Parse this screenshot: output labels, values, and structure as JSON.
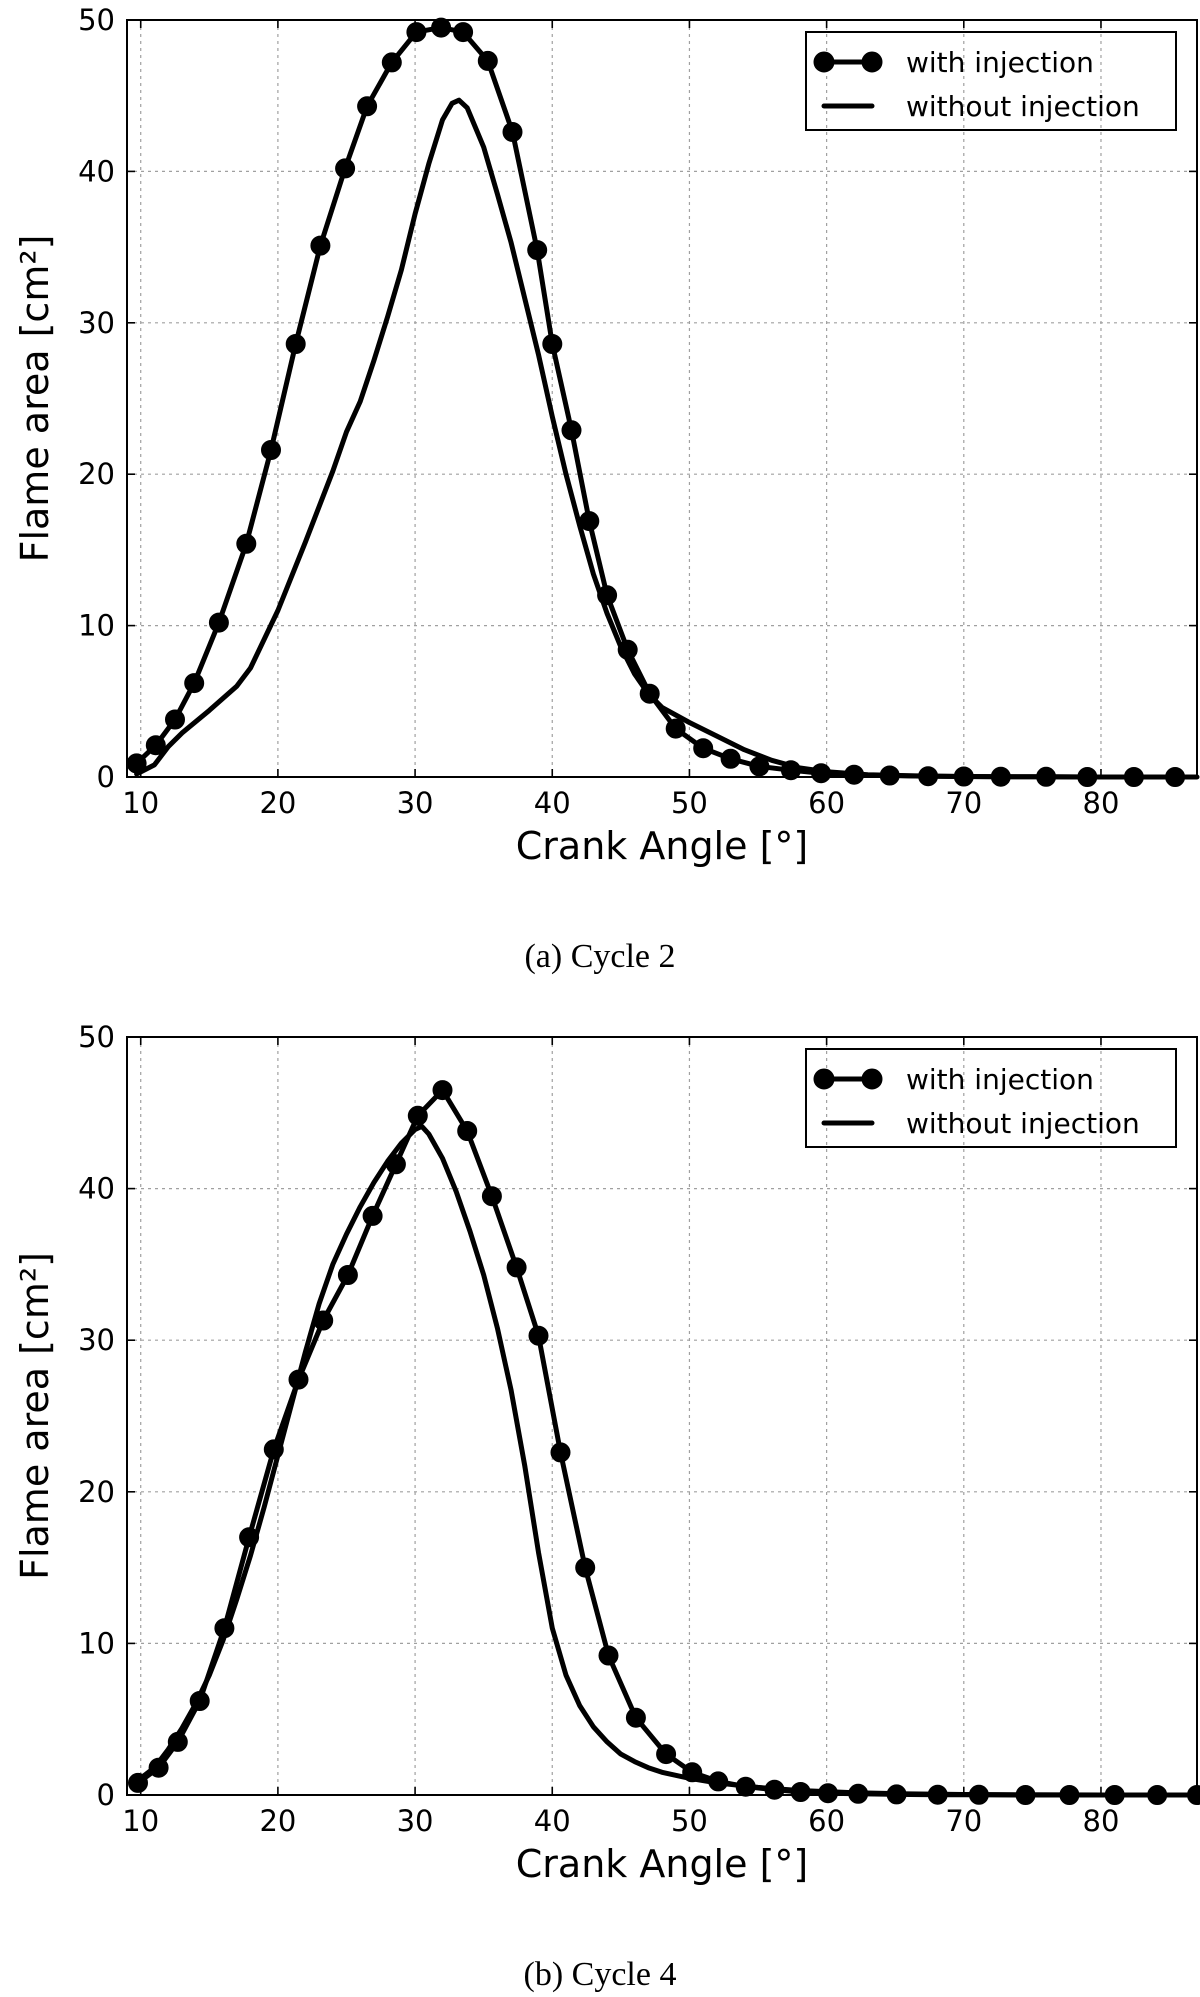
{
  "chart_data": [
    {
      "type": "line",
      "caption": "(a) Cycle 2",
      "xlabel": "Crank Angle [°]",
      "ylabel": "Flame area [cm²]",
      "xlim": [
        9,
        87
      ],
      "ylim": [
        0,
        50
      ],
      "xticks": [
        10,
        20,
        30,
        40,
        50,
        60,
        70,
        80
      ],
      "yticks": [
        0,
        10,
        20,
        30,
        40,
        50
      ],
      "grid": true,
      "legend": "top-right",
      "series": [
        {
          "name": "with injection",
          "style": "line-markers",
          "points": [
            [
              9.7,
              0.9
            ],
            [
              11.1,
              2.1
            ],
            [
              12.5,
              3.8
            ],
            [
              13.9,
              6.2
            ],
            [
              15.7,
              10.2
            ],
            [
              17.7,
              15.4
            ],
            [
              19.5,
              21.6
            ],
            [
              21.3,
              28.6
            ],
            [
              23.1,
              35.1
            ],
            [
              24.9,
              40.2
            ],
            [
              26.5,
              44.3
            ],
            [
              28.3,
              47.2
            ],
            [
              30.1,
              49.2
            ],
            [
              31.9,
              49.5
            ],
            [
              33.5,
              49.2
            ],
            [
              35.3,
              47.3
            ],
            [
              37.1,
              42.6
            ],
            [
              38.9,
              34.8
            ],
            [
              40.0,
              28.6
            ],
            [
              41.4,
              22.9
            ],
            [
              42.7,
              16.9
            ],
            [
              44.0,
              12.0
            ],
            [
              45.5,
              8.4
            ],
            [
              47.1,
              5.5
            ],
            [
              49.0,
              3.2
            ],
            [
              51.0,
              1.9
            ],
            [
              53.0,
              1.2
            ],
            [
              55.1,
              0.7
            ],
            [
              57.4,
              0.45
            ],
            [
              59.6,
              0.25
            ],
            [
              62.0,
              0.15
            ],
            [
              64.6,
              0.1
            ],
            [
              67.4,
              0.05
            ],
            [
              70.0,
              0.03
            ],
            [
              72.7,
              0.02
            ],
            [
              76.0,
              0.01
            ],
            [
              79.0,
              0.0
            ],
            [
              82.4,
              0.0
            ],
            [
              85.4,
              0.0
            ]
          ]
        },
        {
          "name": "without injection",
          "style": "line",
          "points": [
            [
              9.7,
              0.2
            ],
            [
              11,
              0.8
            ],
            [
              12,
              2.0
            ],
            [
              13,
              2.9
            ],
            [
              15,
              4.4
            ],
            [
              17,
              6.0
            ],
            [
              18,
              7.2
            ],
            [
              20,
              11.0
            ],
            [
              22,
              15.5
            ],
            [
              24,
              20.2
            ],
            [
              25,
              22.8
            ],
            [
              26,
              24.8
            ],
            [
              27,
              27.5
            ],
            [
              28,
              30.4
            ],
            [
              29,
              33.5
            ],
            [
              30,
              37.2
            ],
            [
              31,
              40.5
            ],
            [
              32,
              43.4
            ],
            [
              32.7,
              44.5
            ],
            [
              33.2,
              44.7
            ],
            [
              33.8,
              44.2
            ],
            [
              35,
              41.6
            ],
            [
              36,
              38.5
            ],
            [
              37,
              35.3
            ],
            [
              38,
              31.6
            ],
            [
              39,
              27.9
            ],
            [
              40,
              23.8
            ],
            [
              41,
              20.0
            ],
            [
              42,
              16.6
            ],
            [
              43,
              13.4
            ],
            [
              44,
              10.8
            ],
            [
              45,
              8.6
            ],
            [
              46,
              6.8
            ],
            [
              47,
              5.5
            ],
            [
              48,
              4.6
            ],
            [
              50,
              3.6
            ],
            [
              52,
              2.7
            ],
            [
              54,
              1.8
            ],
            [
              56,
              1.1
            ],
            [
              58,
              0.6
            ],
            [
              60,
              0.35
            ],
            [
              63,
              0.15
            ],
            [
              66,
              0.08
            ],
            [
              70,
              0.03
            ],
            [
              75,
              0.01
            ],
            [
              80,
              0.0
            ],
            [
              87,
              0.0
            ]
          ]
        }
      ]
    },
    {
      "type": "line",
      "caption": "(b) Cycle 4",
      "xlabel": "Crank Angle [°]",
      "ylabel": "Flame area [cm²]",
      "xlim": [
        9,
        87
      ],
      "ylim": [
        0,
        50
      ],
      "xticks": [
        10,
        20,
        30,
        40,
        50,
        60,
        70,
        80
      ],
      "yticks": [
        0,
        10,
        20,
        30,
        40,
        50
      ],
      "grid": true,
      "legend": "top-right",
      "series": [
        {
          "name": "with injection",
          "style": "line-markers",
          "points": [
            [
              9.8,
              0.8
            ],
            [
              11.3,
              1.8
            ],
            [
              12.7,
              3.5
            ],
            [
              14.3,
              6.2
            ],
            [
              16.1,
              11.0
            ],
            [
              17.9,
              17.0
            ],
            [
              19.7,
              22.8
            ],
            [
              21.5,
              27.4
            ],
            [
              23.3,
              31.3
            ],
            [
              25.1,
              34.3
            ],
            [
              26.9,
              38.2
            ],
            [
              28.6,
              41.6
            ],
            [
              30.2,
              44.8
            ],
            [
              32.0,
              46.5
            ],
            [
              33.8,
              43.8
            ],
            [
              35.6,
              39.5
            ],
            [
              37.4,
              34.8
            ],
            [
              39.0,
              30.3
            ],
            [
              40.6,
              22.6
            ],
            [
              42.4,
              15.0
            ],
            [
              44.1,
              9.2
            ],
            [
              46.1,
              5.1
            ],
            [
              48.3,
              2.7
            ],
            [
              50.2,
              1.5
            ],
            [
              52.1,
              0.9
            ],
            [
              54.1,
              0.55
            ],
            [
              56.2,
              0.35
            ],
            [
              58.1,
              0.2
            ],
            [
              60.1,
              0.12
            ],
            [
              62.3,
              0.08
            ],
            [
              65.1,
              0.04
            ],
            [
              68.1,
              0.02
            ],
            [
              71.1,
              0.01
            ],
            [
              74.5,
              0.0
            ],
            [
              77.7,
              0.0
            ],
            [
              81.0,
              0.0
            ],
            [
              84.1,
              0.0
            ],
            [
              87.0,
              0.0
            ]
          ]
        },
        {
          "name": "without injection",
          "style": "line",
          "points": [
            [
              9.7,
              0.9
            ],
            [
              11,
              1.8
            ],
            [
              12,
              3.0
            ],
            [
              13,
              4.4
            ],
            [
              14,
              6.0
            ],
            [
              15,
              7.9
            ],
            [
              16,
              10.2
            ],
            [
              17,
              12.9
            ],
            [
              18,
              15.8
            ],
            [
              19,
              19.0
            ],
            [
              20,
              22.4
            ],
            [
              21,
              25.8
            ],
            [
              22,
              29.2
            ],
            [
              23,
              32.4
            ],
            [
              24,
              35.0
            ],
            [
              25,
              37.0
            ],
            [
              26,
              38.8
            ],
            [
              27,
              40.4
            ],
            [
              28,
              41.8
            ],
            [
              29,
              43.0
            ],
            [
              30,
              43.9
            ],
            [
              30.5,
              44.1
            ],
            [
              31,
              43.6
            ],
            [
              32,
              42.0
            ],
            [
              33,
              39.8
            ],
            [
              34,
              37.2
            ],
            [
              35,
              34.3
            ],
            [
              36,
              30.8
            ],
            [
              37,
              26.7
            ],
            [
              38,
              21.7
            ],
            [
              39,
              16.0
            ],
            [
              40,
              11.0
            ],
            [
              41,
              7.9
            ],
            [
              42,
              5.9
            ],
            [
              43,
              4.5
            ],
            [
              44,
              3.5
            ],
            [
              45,
              2.7
            ],
            [
              46,
              2.2
            ],
            [
              47,
              1.8
            ],
            [
              48,
              1.5
            ],
            [
              50,
              1.1
            ],
            [
              52,
              0.8
            ],
            [
              55,
              0.5
            ],
            [
              58,
              0.3
            ],
            [
              62,
              0.15
            ],
            [
              66,
              0.07
            ],
            [
              70,
              0.03
            ],
            [
              75,
              0.01
            ],
            [
              80,
              0.0
            ],
            [
              87,
              0.0
            ]
          ]
        }
      ]
    }
  ]
}
